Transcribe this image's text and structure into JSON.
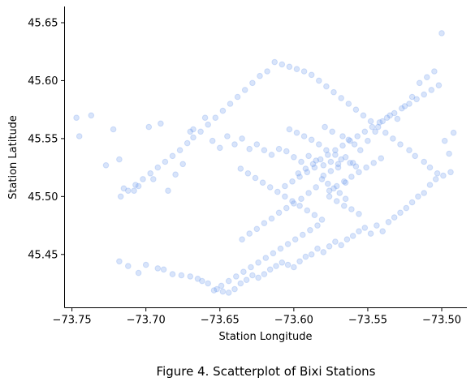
{
  "caption": "Figure 4. Scatterplot of Bixi Stations",
  "chart_data": {
    "type": "scatter",
    "xlabel": "Station Longitude",
    "ylabel": "Station Latitude",
    "xlim": [
      -73.755,
      -73.483
    ],
    "ylim": [
      45.404,
      45.664
    ],
    "xticks": [
      -73.75,
      -73.7,
      -73.65,
      -73.6,
      -73.55,
      -73.5
    ],
    "xtick_labels": [
      "−73.75",
      "−73.70",
      "−73.65",
      "−73.60",
      "−73.55",
      "−73.50"
    ],
    "yticks": [
      45.45,
      45.5,
      45.55,
      45.6,
      45.65
    ],
    "ytick_labels": [
      "45.45",
      "45.50",
      "45.55",
      "45.60",
      "45.65"
    ],
    "marker_color": "#6495ED",
    "marker_alpha": 0.25,
    "grid": false,
    "x": [
      -73.747,
      -73.745,
      -73.737,
      -73.727,
      -73.722,
      -73.718,
      -73.715,
      -73.708,
      -73.705,
      -73.698,
      -73.695,
      -73.69,
      -73.685,
      -73.68,
      -73.675,
      -73.67,
      -73.668,
      -73.66,
      -73.655,
      -73.65,
      -73.645,
      -73.64,
      -73.635,
      -73.63,
      -73.625,
      -73.62,
      -73.615,
      -73.61,
      -73.605,
      -73.6,
      -73.595,
      -73.59,
      -73.585,
      -73.58,
      -73.575,
      -73.57,
      -73.565,
      -73.56,
      -73.555,
      -73.55,
      -73.545,
      -73.54,
      -73.535,
      -73.53,
      -73.525,
      -73.52,
      -73.515,
      -73.51,
      -73.505,
      -73.5,
      -73.495,
      -73.718,
      -73.712,
      -73.705,
      -73.7,
      -73.692,
      -73.688,
      -73.682,
      -73.676,
      -73.67,
      -73.665,
      -73.662,
      -73.658,
      -73.652,
      -73.648,
      -73.644,
      -73.64,
      -73.636,
      -73.632,
      -73.628,
      -73.624,
      -73.62,
      -73.616,
      -73.612,
      -73.608,
      -73.604,
      -73.6,
      -73.596,
      -73.592,
      -73.588,
      -73.584,
      -73.58,
      -73.576,
      -73.572,
      -73.568,
      -73.564,
      -73.56,
      -73.556,
      -73.552,
      -73.548,
      -73.544,
      -73.54,
      -73.536,
      -73.532,
      -73.528,
      -73.524,
      -73.52,
      -73.516,
      -73.512,
      -73.508,
      -73.504,
      -73.499,
      -73.494,
      -73.498,
      -73.492,
      -73.503,
      -73.508,
      -73.512,
      -73.518,
      -73.522,
      -73.528,
      -73.533,
      -73.538,
      -73.543,
      -73.548,
      -73.553,
      -73.558,
      -73.563,
      -73.568,
      -73.573,
      -73.578,
      -73.583,
      -73.588,
      -73.593,
      -73.598,
      -73.603,
      -73.608,
      -73.613,
      -73.618,
      -73.623,
      -73.628,
      -73.633,
      -73.638,
      -73.643,
      -73.648,
      -73.653,
      -73.658,
      -73.663,
      -73.668,
      -73.672,
      -73.677,
      -73.682,
      -73.687,
      -73.692,
      -73.697,
      -73.702,
      -73.707,
      -73.712,
      -73.717,
      -73.58,
      -73.575,
      -73.57,
      -73.565,
      -73.585,
      -73.59,
      -73.595,
      -73.6,
      -73.605,
      -73.61,
      -73.615,
      -73.62,
      -73.625,
      -73.63,
      -73.635,
      -73.578,
      -73.572,
      -73.568,
      -73.562,
      -73.558,
      -73.576,
      -73.571,
      -73.566,
      -73.561,
      -73.556,
      -73.583,
      -73.588,
      -73.593,
      -73.598,
      -73.603,
      -73.581,
      -73.577,
      -73.573,
      -73.569,
      -73.565,
      -73.586,
      -73.591,
      -73.596,
      -73.601,
      -73.606,
      -73.579,
      -73.574,
      -73.567,
      -73.563,
      -73.559,
      -73.584,
      -73.589,
      -73.594,
      -73.599,
      -73.604,
      -73.609,
      -73.614,
      -73.619,
      -73.624,
      -73.629,
      -73.634,
      -73.639,
      -73.644,
      -73.649,
      -73.654,
      -73.597,
      -73.592,
      -73.587,
      -73.582,
      -73.577,
      -73.572,
      -73.567,
      -73.562,
      -73.557,
      -73.552,
      -73.547,
      -73.542,
      -73.537,
      -73.532,
      -73.527,
      -73.522,
      -73.517,
      -73.512,
      -73.507,
      -73.502,
      -73.576,
      -73.571,
      -73.566,
      -73.561,
      -73.556,
      -73.551,
      -73.546,
      -73.541,
      -73.581,
      -73.586,
      -73.591,
      -73.596,
      -73.601,
      -73.606,
      -73.611,
      -73.616,
      -73.621,
      -73.626,
      -73.631,
      -73.636
    ],
    "y": [
      45.568,
      45.552,
      45.57,
      45.527,
      45.558,
      45.532,
      45.507,
      45.505,
      45.509,
      45.56,
      45.515,
      45.563,
      45.505,
      45.519,
      45.528,
      45.556,
      45.558,
      45.568,
      45.548,
      45.542,
      45.552,
      45.545,
      45.55,
      45.541,
      45.545,
      45.54,
      45.536,
      45.541,
      45.539,
      45.534,
      45.53,
      45.535,
      45.531,
      45.527,
      45.53,
      45.528,
      45.534,
      45.529,
      45.54,
      45.548,
      45.556,
      45.565,
      45.57,
      45.567,
      45.578,
      45.586,
      45.598,
      45.603,
      45.608,
      45.641,
      45.537,
      45.444,
      45.44,
      45.434,
      45.441,
      45.438,
      45.437,
      45.433,
      45.432,
      45.431,
      45.429,
      45.427,
      45.425,
      45.42,
      45.418,
      45.417,
      45.42,
      45.425,
      45.428,
      45.432,
      45.43,
      45.433,
      45.437,
      45.44,
      45.443,
      45.441,
      45.439,
      45.444,
      45.448,
      45.45,
      45.455,
      45.452,
      45.457,
      45.461,
      45.458,
      45.463,
      45.466,
      45.47,
      45.473,
      45.468,
      45.475,
      45.47,
      45.478,
      45.482,
      45.486,
      45.49,
      45.495,
      45.5,
      45.503,
      45.51,
      45.515,
      45.518,
      45.521,
      45.548,
      45.555,
      45.52,
      45.525,
      45.53,
      45.535,
      45.54,
      45.545,
      45.55,
      45.555,
      45.56,
      45.565,
      45.57,
      45.575,
      45.58,
      45.585,
      45.59,
      45.595,
      45.6,
      45.605,
      45.608,
      45.61,
      45.612,
      45.614,
      45.616,
      45.608,
      45.604,
      45.598,
      45.592,
      45.586,
      45.58,
      45.574,
      45.568,
      45.562,
      45.556,
      45.551,
      45.546,
      45.54,
      45.535,
      45.53,
      45.525,
      45.52,
      45.515,
      45.51,
      45.505,
      45.5,
      45.518,
      45.522,
      45.525,
      45.512,
      45.508,
      45.503,
      45.498,
      45.494,
      45.49,
      45.486,
      45.481,
      45.477,
      45.472,
      45.468,
      45.463,
      45.54,
      45.536,
      45.532,
      45.529,
      45.526,
      45.5,
      45.496,
      45.492,
      45.489,
      45.485,
      45.545,
      45.549,
      45.552,
      45.555,
      45.558,
      45.515,
      45.511,
      45.507,
      45.503,
      45.498,
      45.525,
      45.521,
      45.517,
      45.513,
      45.509,
      45.56,
      45.556,
      45.552,
      45.549,
      45.545,
      45.475,
      45.471,
      45.467,
      45.463,
      45.459,
      45.455,
      45.451,
      45.447,
      45.443,
      45.439,
      45.435,
      45.431,
      45.427,
      45.423,
      45.419,
      45.52,
      45.524,
      45.528,
      45.532,
      45.536,
      45.54,
      45.544,
      45.548,
      45.552,
      45.556,
      45.56,
      45.564,
      45.568,
      45.572,
      45.576,
      45.58,
      45.584,
      45.588,
      45.592,
      45.596,
      45.505,
      45.509,
      45.513,
      45.517,
      45.521,
      45.525,
      45.529,
      45.533,
      45.48,
      45.484,
      45.488,
      45.492,
      45.496,
      45.5,
      45.504,
      45.508,
      45.512,
      45.516,
      45.52,
      45.524
    ]
  }
}
